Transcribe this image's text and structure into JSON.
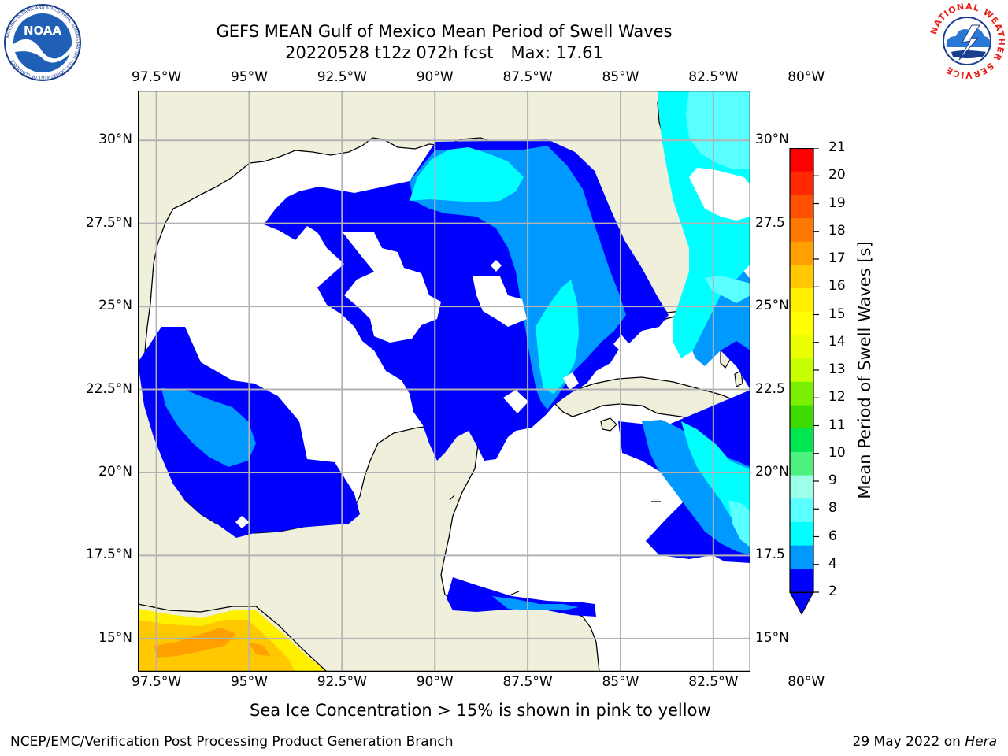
{
  "title": {
    "line1": "GEFS MEAN Gulf of Mexico Mean Period of Swell Waves",
    "run": "20220528 t12z 072h fcst",
    "max": "Max: 17.61"
  },
  "logos": {
    "left": {
      "name": "noaa-logo",
      "text": "NOAA",
      "ring_text": "NATIONAL OCEANIC AND ATMOSPHERIC ADMINISTRATION · U.S. DEPARTMENT OF COMMERCE"
    },
    "right": {
      "name": "nws-logo",
      "ring_text": "NATIONAL WEATHER SERVICE"
    }
  },
  "map": {
    "lon_range": [
      -98.0,
      -81.5
    ],
    "lat_range": [
      14.0,
      31.5
    ],
    "lon_ticks": [
      "97.5°W",
      "95°W",
      "92.5°W",
      "90°W",
      "87.5°W",
      "85°W",
      "82.5°W",
      "80°W"
    ],
    "lat_ticks_left": [
      "30°N",
      "27.5°N",
      "25°N",
      "22.5°N",
      "20°N",
      "17.5°N",
      "15°N"
    ],
    "lat_ticks_right": [
      "30°N",
      "27.5",
      "25°N",
      "22.5",
      "20°N",
      "17.5",
      "15°N"
    ],
    "land_color": "#efefdc",
    "grid_color": "#b3b3b3"
  },
  "colorbar": {
    "label": "Mean Period of Swell Waves [s]",
    "ticks": [
      "21",
      "20",
      "19",
      "18",
      "17",
      "16",
      "15",
      "14",
      "13",
      "12",
      "11",
      "10",
      "9",
      "8",
      "6",
      "4",
      "2"
    ],
    "colors": [
      "#ff0000",
      "#ff2800",
      "#ff5000",
      "#ff7800",
      "#ffa000",
      "#ffc800",
      "#fff000",
      "#ffff00",
      "#ecff00",
      "#c8ff00",
      "#78f000",
      "#3cdc00",
      "#00e650",
      "#4ef080",
      "#9cffe8",
      "#5affff",
      "#00ffff",
      "#0099ff",
      "#0000ff"
    ],
    "extend_color": "#0000ff"
  },
  "footnote": "Sea Ice Concentration > 15% is shown in pink to yellow",
  "credit_left": "NCEP/EMC/Verification Post Processing Product Generation Branch",
  "credit_right": {
    "date": "29 May 2022 on",
    "machine": "Hera"
  }
}
